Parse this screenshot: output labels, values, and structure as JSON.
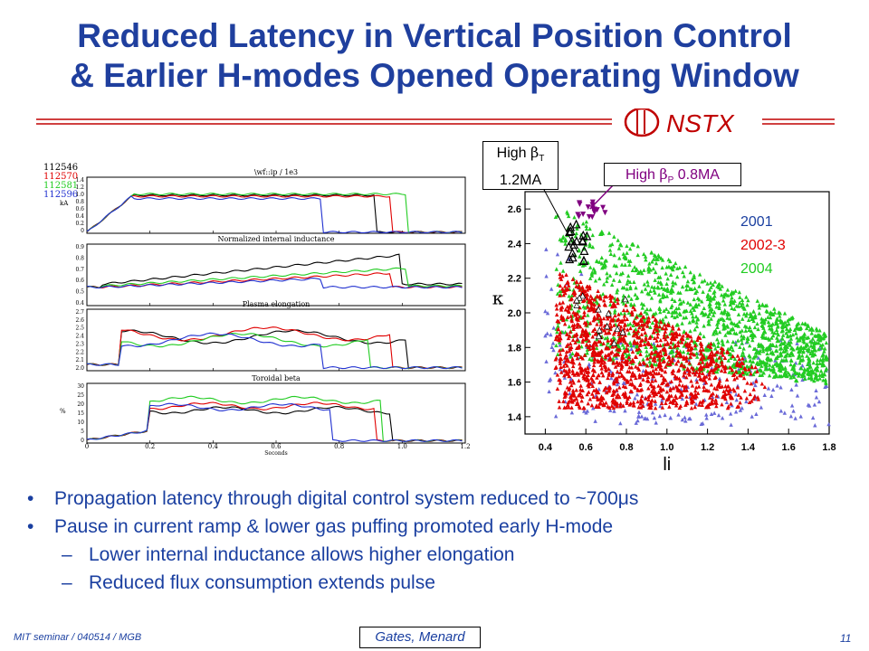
{
  "title": {
    "line1": "Reduced Latency in Vertical Position Control",
    "line2": "& Earlier H-modes Opened Operating Window"
  },
  "logo": {
    "text": "NSTX"
  },
  "bullets": [
    "Propagation latency through digital control system reduced to ~700μs",
    "Pause in current ramp & lower gas puffing promoted early H-mode"
  ],
  "subbullets": [
    "Lower internal inductance allows higher elongation",
    "Reduced flux consumption extends pulse"
  ],
  "footer": {
    "left": "MIT seminar / 040514 / MGB",
    "author": "Gates, Menard",
    "page": "11"
  },
  "colors": {
    "title": "#1f3f9e",
    "black": "#000000",
    "red": "#e00000",
    "green": "#22cc22",
    "blue": "#2030d0",
    "purple": "#800080"
  },
  "left_figure": {
    "shots": [
      {
        "label": "112546",
        "color": "#000000"
      },
      {
        "label": "112570",
        "color": "#e00000"
      },
      {
        "label": "112581",
        "color": "#22cc22"
      },
      {
        "label": "112596",
        "color": "#2030d0"
      }
    ],
    "panels": [
      {
        "title": "\\wf::ip / 1e3",
        "ylabel": "kA",
        "yticks": [
          "1.4",
          "1.2",
          "1.0",
          "0.8",
          "0.6",
          "0.4",
          "0.2",
          "0"
        ]
      },
      {
        "title": "Normalized internal inductance",
        "ylabel": "",
        "yticks": [
          "0.9",
          "0.8",
          "0.7",
          "0.6",
          "0.5",
          "0.4"
        ]
      },
      {
        "title": "Plasma elongation",
        "ylabel": "",
        "yticks": [
          "2.7",
          "2.6",
          "2.5",
          "2.4",
          "2.3",
          "2.2",
          "2.1",
          "2.0"
        ]
      },
      {
        "title": "Toroidal beta",
        "ylabel": "%",
        "yticks": [
          "30",
          "25",
          "20",
          "15",
          "10",
          "5",
          "0"
        ]
      }
    ],
    "xticks": [
      "0",
      "0.2",
      "0.4",
      "0.6",
      "0.8",
      "1.0",
      "1.2"
    ],
    "xlabel": "Seconds"
  },
  "chart_data": {
    "type": "scatter",
    "xlabel": "li",
    "ylabel": "κ",
    "xlim": [
      0.3,
      1.8
    ],
    "ylim": [
      1.3,
      2.7
    ],
    "xticks": [
      "0.4",
      "0.6",
      "0.8",
      "1.0",
      "1.2",
      "1.4",
      "1.6",
      "1.8"
    ],
    "yticks": [
      "1.4",
      "1.6",
      "1.8",
      "2.0",
      "2.2",
      "2.4",
      "2.6"
    ],
    "series": [
      {
        "name": "2001",
        "color": "#6a6ad8",
        "values": [
          [
            0.45,
            1.5
          ],
          [
            0.6,
            1.6
          ],
          [
            0.8,
            1.55
          ],
          [
            1.0,
            1.6
          ],
          [
            1.2,
            1.65
          ],
          [
            1.4,
            1.6
          ],
          [
            1.6,
            1.55
          ]
        ]
      },
      {
        "name": "2002-3",
        "color": "#e00000",
        "values": [
          [
            0.45,
            1.5
          ],
          [
            0.55,
            2.1
          ],
          [
            0.7,
            1.9
          ],
          [
            0.9,
            1.7
          ],
          [
            1.1,
            1.6
          ],
          [
            1.3,
            1.55
          ],
          [
            1.45,
            1.5
          ]
        ]
      },
      {
        "name": "2004",
        "color": "#22cc22",
        "values": [
          [
            0.45,
            2.5
          ],
          [
            0.6,
            2.3
          ],
          [
            0.8,
            2.1
          ],
          [
            1.0,
            2.0
          ],
          [
            1.2,
            1.95
          ],
          [
            1.4,
            1.9
          ],
          [
            1.7,
            1.8
          ]
        ]
      }
    ],
    "annotations": [
      {
        "text_main": "High",
        "symbol": "β",
        "sub": "T",
        "text2": "1.2MA"
      },
      {
        "text_main": "High",
        "symbol": "β",
        "sub": "P",
        "text2": "0.8MA"
      }
    ]
  }
}
